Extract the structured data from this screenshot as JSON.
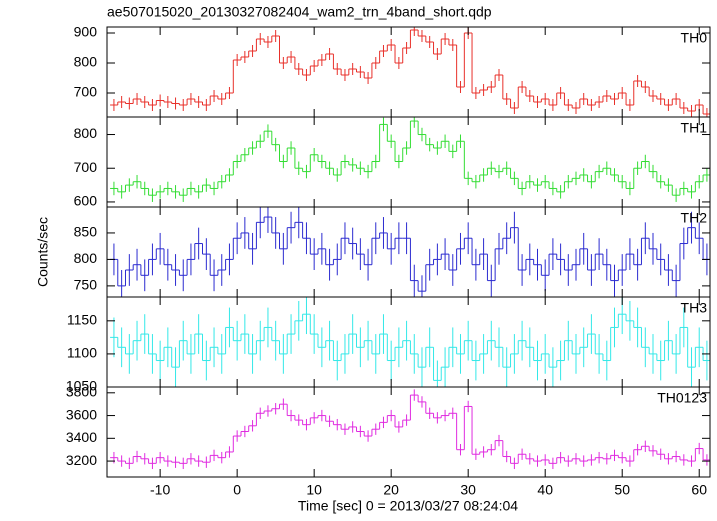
{
  "chart_data": {
    "type": "step",
    "title": "ae507015020_20130327082404_wam2_trn_4band_short.qdp",
    "xlabel": "Time [sec] 0 = 2013/03/27 08:24:04",
    "ylabel": "Counts/sec",
    "xlim": [
      -16.9,
      61.4
    ],
    "xticks": [
      -10,
      0,
      10,
      20,
      30,
      40,
      50,
      60
    ],
    "x": [
      -16,
      -15,
      -14,
      -13,
      -12,
      -11,
      -10,
      -9,
      -8,
      -7,
      -6,
      -5,
      -4,
      -3,
      -2,
      -1,
      0,
      1,
      2,
      3,
      4,
      5,
      6,
      7,
      8,
      9,
      10,
      11,
      12,
      13,
      14,
      15,
      16,
      17,
      18,
      19,
      20,
      21,
      22,
      23,
      24,
      25,
      26,
      27,
      28,
      29,
      30,
      31,
      32,
      33,
      34,
      35,
      36,
      37,
      38,
      39,
      40,
      41,
      42,
      43,
      44,
      45,
      46,
      47,
      48,
      49,
      50,
      51,
      52,
      53,
      54,
      55,
      56,
      57,
      58,
      59,
      60,
      61
    ],
    "panels": [
      {
        "name": "TH0",
        "color": "#e8302a",
        "ylim": [
          620,
          920
        ],
        "yticks": [
          700,
          800,
          900
        ],
        "error": 20,
        "values": [
          660,
          670,
          665,
          680,
          670,
          660,
          675,
          670,
          665,
          660,
          680,
          670,
          660,
          690,
          680,
          700,
          810,
          820,
          840,
          880,
          870,
          890,
          800,
          820,
          780,
          760,
          790,
          810,
          830,
          780,
          760,
          780,
          770,
          750,
          800,
          840,
          860,
          800,
          850,
          910,
          890,
          870,
          830,
          880,
          860,
          720,
          900,
          700,
          710,
          720,
          760,
          680,
          650,
          720,
          690,
          670,
          680,
          660,
          700,
          660,
          650,
          680,
          660,
          670,
          690,
          680,
          700,
          660,
          740,
          720,
          690,
          680,
          660,
          680,
          650,
          640,
          660,
          630
        ]
      },
      {
        "name": "TH1",
        "color": "#33dd33",
        "ylim": [
          585,
          852
        ],
        "yticks": [
          600,
          700,
          800
        ],
        "error": 20,
        "values": [
          640,
          630,
          650,
          660,
          640,
          620,
          630,
          640,
          630,
          620,
          640,
          630,
          650,
          640,
          660,
          680,
          720,
          740,
          760,
          780,
          810,
          770,
          720,
          760,
          700,
          690,
          740,
          720,
          700,
          680,
          720,
          710,
          700,
          690,
          720,
          830,
          780,
          720,
          760,
          840,
          800,
          770,
          760,
          780,
          750,
          780,
          670,
          660,
          680,
          700,
          690,
          700,
          670,
          640,
          660,
          650,
          660,
          640,
          630,
          660,
          670,
          680,
          660,
          690,
          700,
          680,
          660,
          640,
          700,
          720,
          690,
          660,
          650,
          620,
          640,
          630,
          660,
          680
        ]
      },
      {
        "name": "TH2",
        "color": "#2b2bd0",
        "ylim": [
          729,
          899
        ],
        "yticks": [
          750,
          800,
          850
        ],
        "error": 30,
        "values": [
          800,
          750,
          780,
          790,
          770,
          800,
          820,
          790,
          780,
          770,
          800,
          830,
          810,
          770,
          780,
          800,
          840,
          850,
          820,
          870,
          880,
          850,
          820,
          860,
          870,
          840,
          810,
          820,
          790,
          800,
          840,
          830,
          810,
          790,
          840,
          850,
          820,
          840,
          840,
          760,
          740,
          790,
          800,
          810,
          780,
          820,
          840,
          790,
          810,
          760,
          820,
          840,
          860,
          780,
          800,
          790,
          770,
          810,
          800,
          780,
          790,
          820,
          780,
          810,
          790,
          760,
          780,
          810,
          790,
          840,
          820,
          800,
          780,
          760,
          830,
          860,
          840,
          800
        ]
      },
      {
        "name": "TH3",
        "color": "#33e8e8",
        "ylim": [
          1050,
          1186
        ],
        "yticks": [
          1050,
          1100,
          1150
        ],
        "error": 30,
        "values": [
          1125,
          1110,
          1100,
          1120,
          1130,
          1100,
          1090,
          1110,
          1080,
          1120,
          1100,
          1130,
          1090,
          1110,
          1100,
          1140,
          1120,
          1130,
          1100,
          1120,
          1140,
          1120,
          1100,
          1130,
          1150,
          1160,
          1130,
          1110,
          1120,
          1090,
          1100,
          1130,
          1110,
          1120,
          1100,
          1130,
          1090,
          1110,
          1120,
          1100,
          1080,
          1110,
          1060,
          1080,
          1110,
          1100,
          1120,
          1090,
          1100,
          1120,
          1110,
          1080,
          1100,
          1120,
          1110,
          1090,
          1100,
          1080,
          1090,
          1120,
          1100,
          1110,
          1130,
          1100,
          1090,
          1140,
          1160,
          1150,
          1140,
          1110,
          1100,
          1090,
          1120,
          1100,
          1140,
          1080,
          1110,
          1090
        ]
      },
      {
        "name": "TH0123",
        "color": "#e02be0",
        "ylim": [
          3060,
          3851
        ],
        "yticks": [
          3200,
          3400,
          3600,
          3800
        ],
        "error": 50,
        "values": [
          3230,
          3200,
          3180,
          3240,
          3220,
          3180,
          3230,
          3200,
          3190,
          3180,
          3220,
          3200,
          3190,
          3250,
          3230,
          3280,
          3420,
          3460,
          3510,
          3620,
          3640,
          3660,
          3700,
          3600,
          3560,
          3520,
          3580,
          3600,
          3550,
          3520,
          3480,
          3500,
          3460,
          3420,
          3480,
          3540,
          3600,
          3500,
          3560,
          3780,
          3720,
          3620,
          3580,
          3600,
          3620,
          3300,
          3680,
          3260,
          3280,
          3300,
          3380,
          3240,
          3180,
          3260,
          3220,
          3200,
          3210,
          3180,
          3230,
          3200,
          3220,
          3200,
          3210,
          3230,
          3220,
          3250,
          3230,
          3200,
          3300,
          3330,
          3290,
          3260,
          3220,
          3240,
          3210,
          3200,
          3310,
          3210
        ]
      }
    ]
  }
}
